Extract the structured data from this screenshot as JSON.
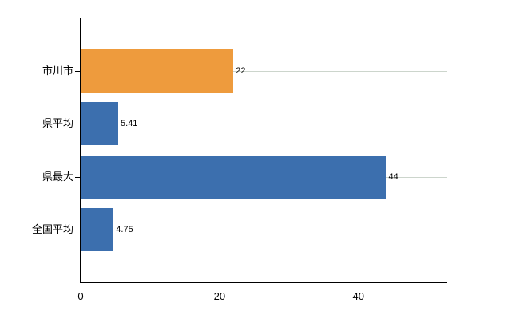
{
  "chart_data": {
    "type": "bar",
    "orientation": "horizontal",
    "categories": [
      "市川市",
      "県平均",
      "県最大",
      "全国平均"
    ],
    "values": [
      22,
      5.41,
      44,
      4.75
    ],
    "value_labels": [
      "22",
      "5.41",
      "44",
      "4.75"
    ],
    "bar_colors": [
      "#ee9b3d",
      "#3c6fae",
      "#3c6fae",
      "#3c6fae"
    ],
    "x_ticks": [
      0,
      20,
      40
    ],
    "x_tick_labels": [
      "0",
      "20",
      "40"
    ],
    "xlim": [
      0,
      52.8
    ],
    "grid": true,
    "legend": "none",
    "highlight_category": "市川市"
  },
  "style": {
    "axis_color": "#000000",
    "grid_solid_color": "#ccd5cc",
    "grid_dashed_color": "#d9d9d9",
    "text_color": "#000000",
    "background_color": "#ffffff"
  }
}
